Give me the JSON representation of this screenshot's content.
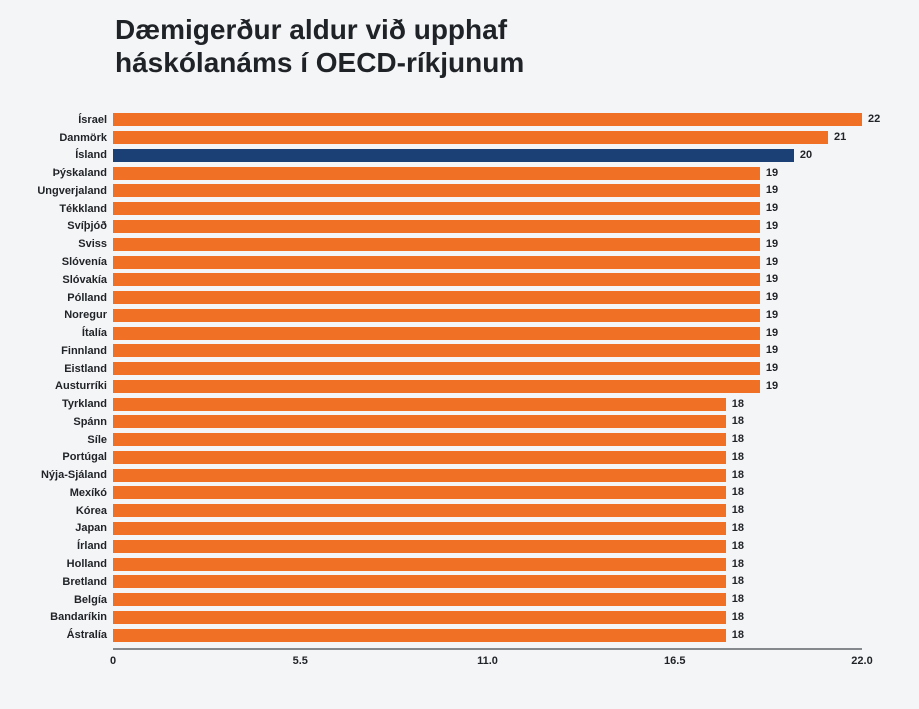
{
  "page": {
    "background": "#F4F5F7"
  },
  "chart_data": {
    "type": "bar",
    "orientation": "horizontal",
    "title": "Dæmigerður aldur við upphaf\nháskólanáms í OECD-ríkjunum",
    "categories": [
      "Ísrael",
      "Danmörk",
      "Ísland",
      "Þýskaland",
      "Ungverjaland",
      "Tékkland",
      "Svíþjóð",
      "Sviss",
      "Slóvenía",
      "Slóvakía",
      "Pólland",
      "Noregur",
      "Ítalía",
      "Finnland",
      "Eistland",
      "Austurríki",
      "Tyrkland",
      "Spánn",
      "Síle",
      "Portúgal",
      "Nýja-Sjáland",
      "Mexíkó",
      "Kórea",
      "Japan",
      "Írland",
      "Holland",
      "Bretland",
      "Belgía",
      "Bandaríkin",
      "Ástralía"
    ],
    "values": [
      22,
      21,
      20,
      19,
      19,
      19,
      19,
      19,
      19,
      19,
      19,
      19,
      19,
      19,
      19,
      19,
      18,
      18,
      18,
      18,
      18,
      18,
      18,
      18,
      18,
      18,
      18,
      18,
      18,
      18
    ],
    "xlim": [
      0,
      22
    ],
    "x_ticks": [
      "0",
      "5.5",
      "11.0",
      "16.5",
      "22.0"
    ],
    "highlight_category": "Ísland",
    "value_labels": true,
    "grid": false,
    "legend": false,
    "colors": {
      "bar": "#F07126",
      "highlight_bar": "#1B4076",
      "text": "#1F2226",
      "axis_line": "#85888C"
    }
  }
}
